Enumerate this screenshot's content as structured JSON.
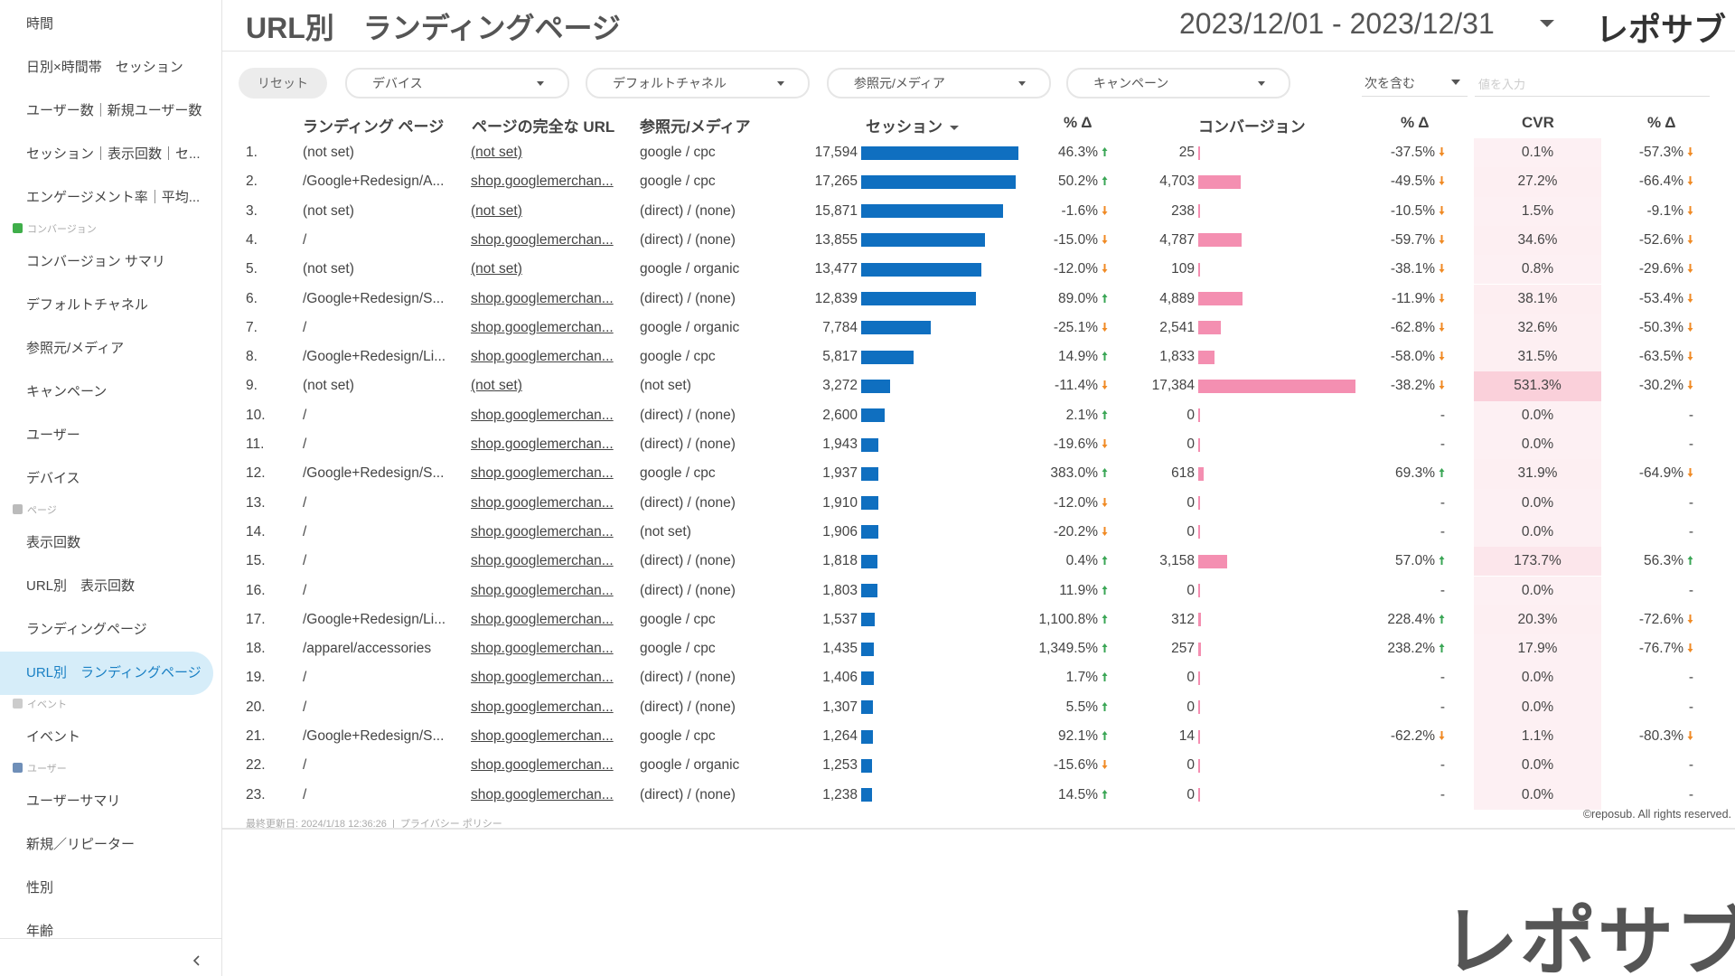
{
  "sidebar": {
    "items": [
      {
        "label": "時間"
      },
      {
        "label": "日別×時間帯　セッション"
      },
      {
        "label": "ユーザー数｜新規ユーザー数"
      },
      {
        "label": "セッション｜表示回数｜セ..."
      },
      {
        "label": "エンゲージメント率｜平均..."
      },
      {
        "section": "コンバージョン",
        "icon_color": "#3fae4a"
      },
      {
        "label": "コンバージョン サマリ"
      },
      {
        "label": "デフォルトチャネル"
      },
      {
        "label": "参照元/メディア"
      },
      {
        "label": "キャンペーン"
      },
      {
        "label": "ユーザー"
      },
      {
        "label": "デバイス"
      },
      {
        "section": "ページ",
        "icon_color": "#bbbbbb"
      },
      {
        "label": "表示回数"
      },
      {
        "label": "URL別　表示回数"
      },
      {
        "label": "ランディングページ"
      },
      {
        "label": "URL別　ランディングページ",
        "active": true
      },
      {
        "section": "イベント",
        "icon_color": "#cccccc"
      },
      {
        "label": "イベント"
      },
      {
        "section": "ユーザー",
        "icon_color": "#6f8fb8"
      },
      {
        "label": "ユーザーサマリ"
      },
      {
        "label": "新規／リピーター"
      },
      {
        "label": "性別"
      },
      {
        "label": "年齢"
      }
    ]
  },
  "header": {
    "title": "URL別　ランディングページ",
    "date_range": "2023/12/01 - 2023/12/31",
    "logo": "レポサブ"
  },
  "filters": {
    "reset": "リセット",
    "dropdowns": [
      "デバイス",
      "デフォルトチャネル",
      "参照元/メディア",
      "キャンペーン"
    ],
    "match": "次を含む",
    "input_placeholder": "値を入力"
  },
  "table": {
    "columns": [
      "ランディング ページ",
      "ページの完全な URL",
      "参照元/メディア",
      "セッション",
      "% Δ",
      "コンバージョン",
      "% Δ",
      "CVR",
      "% Δ"
    ],
    "sorted_column": 3,
    "rows": [
      [
        "1.",
        "(not set)",
        "(not set)",
        "google / cpc",
        "17,594",
        "46.3%",
        "25",
        "-37.5%",
        "0.1%",
        "-57.3%"
      ],
      [
        "2.",
        "/Google+Redesign/A...",
        "shop.googlemerchan...",
        "google / cpc",
        "17,265",
        "50.2%",
        "4,703",
        "-49.5%",
        "27.2%",
        "-66.4%"
      ],
      [
        "3.",
        "(not set)",
        "(not set)",
        "(direct) / (none)",
        "15,871",
        "-1.6%",
        "238",
        "-10.5%",
        "1.5%",
        "-9.1%"
      ],
      [
        "4.",
        "/",
        "shop.googlemerchan...",
        "(direct) / (none)",
        "13,855",
        "-15.0%",
        "4,787",
        "-59.7%",
        "34.6%",
        "-52.6%"
      ],
      [
        "5.",
        "(not set)",
        "(not set)",
        "google / organic",
        "13,477",
        "-12.0%",
        "109",
        "-38.1%",
        "0.8%",
        "-29.6%"
      ],
      [
        "6.",
        "/Google+Redesign/S...",
        "shop.googlemerchan...",
        "(direct) / (none)",
        "12,839",
        "89.0%",
        "4,889",
        "-11.9%",
        "38.1%",
        "-53.4%"
      ],
      [
        "7.",
        "/",
        "shop.googlemerchan...",
        "google / organic",
        "7,784",
        "-25.1%",
        "2,541",
        "-62.8%",
        "32.6%",
        "-50.3%"
      ],
      [
        "8.",
        "/Google+Redesign/Li...",
        "shop.googlemerchan...",
        "google / cpc",
        "5,817",
        "14.9%",
        "1,833",
        "-58.0%",
        "31.5%",
        "-63.5%"
      ],
      [
        "9.",
        "(not set)",
        "(not set)",
        "(not set)",
        "3,272",
        "-11.4%",
        "17,384",
        "-38.2%",
        "531.3%",
        "-30.2%"
      ],
      [
        "10.",
        "/",
        "shop.googlemerchan...",
        "(direct) / (none)",
        "2,600",
        "2.1%",
        "0",
        "-",
        "0.0%",
        "-"
      ],
      [
        "11.",
        "/",
        "shop.googlemerchan...",
        "(direct) / (none)",
        "1,943",
        "-19.6%",
        "0",
        "-",
        "0.0%",
        "-"
      ],
      [
        "12.",
        "/Google+Redesign/S...",
        "shop.googlemerchan...",
        "google / cpc",
        "1,937",
        "383.0%",
        "618",
        "69.3%",
        "31.9%",
        "-64.9%"
      ],
      [
        "13.",
        "/",
        "shop.googlemerchan...",
        "(direct) / (none)",
        "1,910",
        "-12.0%",
        "0",
        "-",
        "0.0%",
        "-"
      ],
      [
        "14.",
        "/",
        "shop.googlemerchan...",
        "(not set)",
        "1,906",
        "-20.2%",
        "0",
        "-",
        "0.0%",
        "-"
      ],
      [
        "15.",
        "/",
        "shop.googlemerchan...",
        "(direct) / (none)",
        "1,818",
        "0.4%",
        "3,158",
        "57.0%",
        "173.7%",
        "56.3%"
      ],
      [
        "16.",
        "/",
        "shop.googlemerchan...",
        "(direct) / (none)",
        "1,803",
        "11.9%",
        "0",
        "-",
        "0.0%",
        "-"
      ],
      [
        "17.",
        "/Google+Redesign/Li...",
        "shop.googlemerchan...",
        "google / cpc",
        "1,537",
        "1,100.8%",
        "312",
        "228.4%",
        "20.3%",
        "-72.6%"
      ],
      [
        "18.",
        "/apparel/accessories",
        "shop.googlemerchan...",
        "google / cpc",
        "1,435",
        "1,349.5%",
        "257",
        "238.2%",
        "17.9%",
        "-76.7%"
      ],
      [
        "19.",
        "/",
        "shop.googlemerchan...",
        "(direct) / (none)",
        "1,406",
        "1.7%",
        "0",
        "-",
        "0.0%",
        "-"
      ],
      [
        "20.",
        "/",
        "shop.googlemerchan...",
        "(direct) / (none)",
        "1,307",
        "5.5%",
        "0",
        "-",
        "0.0%",
        "-"
      ],
      [
        "21.",
        "/Google+Redesign/S...",
        "shop.googlemerchan...",
        "google / cpc",
        "1,264",
        "92.1%",
        "14",
        "-62.2%",
        "1.1%",
        "-80.3%"
      ],
      [
        "22.",
        "/",
        "shop.googlemerchan...",
        "google / organic",
        "1,253",
        "-15.6%",
        "0",
        "-",
        "0.0%",
        "-"
      ],
      [
        "23.",
        "/",
        "shop.googlemerchan...",
        "(direct) / (none)",
        "1,238",
        "14.5%",
        "0",
        "-",
        "0.0%",
        "-"
      ]
    ],
    "session_bar_color": "#0f6fc0",
    "conversion_bar_color": "#f48fb1"
  },
  "footer": {
    "updated": "最終更新日: 2024/1/18 12:36:26",
    "privacy": "プライバシー ポリシー",
    "copyright": "©reposub. All rights reserved."
  },
  "watermark_logo": "レポサブ"
}
